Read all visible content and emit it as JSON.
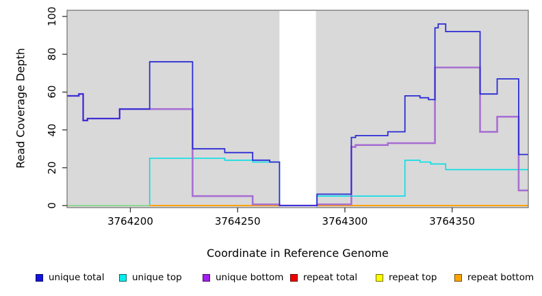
{
  "figure": {
    "y_axis": {
      "title": "Read Coverage Depth",
      "ticks": [
        0,
        20,
        40,
        60,
        80,
        100
      ]
    },
    "x_axis": {
      "title": "Coordinate in Reference Genome",
      "ticks": [
        3764200,
        3764250,
        3764300,
        3764350
      ]
    }
  },
  "legend": {
    "items": [
      {
        "label": "unique total",
        "color": "#1414dd"
      },
      {
        "label": "unique top",
        "color": "#00eeee"
      },
      {
        "label": "unique bottom",
        "color": "#a020f0"
      },
      {
        "label": "repeat total",
        "color": "#ee0000"
      },
      {
        "label": "repeat top",
        "color": "#ffff00"
      },
      {
        "label": "repeat bottom",
        "color": "#ffa500"
      }
    ],
    "item_x": [
      52,
      174,
      296,
      424,
      549,
      664
    ]
  },
  "chart_data": {
    "type": "line",
    "subtype": "step",
    "title": "",
    "xlabel": "Coordinate in Reference Genome",
    "ylabel": "Read Coverage Depth",
    "x_range": [
      3764170.5,
      3764385.5
    ],
    "ylim": [
      0,
      100
    ],
    "x_ticks": [
      3764200,
      3764250,
      3764300,
      3764350
    ],
    "y_ticks": [
      0,
      20,
      40,
      60,
      80,
      100
    ],
    "grid": false,
    "legend_position": "bottom",
    "plot_background": "#d9d9d9",
    "gap_region": {
      "x_start": 3764269.5,
      "x_end": 3764286.5,
      "fill": "#ffffff"
    },
    "baseline_segments": [
      {
        "from": 3764170.5,
        "to": 3764209,
        "value": 0,
        "color": "#8fd898",
        "note": "overlap of repeat-top / unique-top at zero renders pale green"
      },
      {
        "from": 3764209,
        "to": 3764385.5,
        "value": 0,
        "color": "#ffa200"
      }
    ],
    "series": [
      {
        "name": "repeat total",
        "color": "#ee0000",
        "width": 1.6,
        "points": [
          [
            3764170.5,
            0
          ]
        ]
      },
      {
        "name": "repeat top",
        "color": "#ffff00",
        "width": 1.6,
        "points": [
          [
            3764170.5,
            0
          ]
        ]
      },
      {
        "name": "repeat bottom",
        "color": "#ffa200",
        "width": 1.6,
        "points": [
          [
            3764170.5,
            0
          ]
        ]
      },
      {
        "name": "unique top",
        "color": "#00dfe6",
        "width": 1.6,
        "points": [
          [
            3764170.5,
            0
          ],
          [
            3764209,
            25
          ],
          [
            3764244,
            24
          ],
          [
            3764257,
            23
          ],
          [
            3764269.5,
            0
          ],
          [
            3764287,
            5
          ],
          [
            3764328,
            24
          ],
          [
            3764335,
            23
          ],
          [
            3764340,
            22
          ],
          [
            3764347,
            19
          ]
        ]
      },
      {
        "name": "unique bottom",
        "color": "#a76fd2",
        "width": 2.6,
        "points": [
          [
            3764170.5,
            58
          ],
          [
            3764176,
            59
          ],
          [
            3764178,
            45
          ],
          [
            3764180,
            46
          ],
          [
            3764195,
            51
          ],
          [
            3764229,
            5
          ],
          [
            3764257,
            0.6
          ],
          [
            3764269.5,
            0
          ],
          [
            3764287,
            0.6
          ],
          [
            3764303,
            31
          ],
          [
            3764305,
            32
          ],
          [
            3764320,
            33
          ],
          [
            3764342,
            73
          ],
          [
            3764363,
            39
          ],
          [
            3764371,
            47
          ],
          [
            3764381,
            8
          ]
        ]
      },
      {
        "name": "unique total",
        "color": "#2b2bd5",
        "width": 1.8,
        "points": [
          [
            3764170.5,
            58
          ],
          [
            3764176,
            59
          ],
          [
            3764178,
            45
          ],
          [
            3764180,
            46
          ],
          [
            3764195,
            51
          ],
          [
            3764209,
            76
          ],
          [
            3764229,
            30
          ],
          [
            3764244,
            28
          ],
          [
            3764257,
            24
          ],
          [
            3764265,
            23
          ],
          [
            3764269.5,
            0
          ],
          [
            3764287,
            6
          ],
          [
            3764303,
            36
          ],
          [
            3764305,
            37
          ],
          [
            3764320,
            39
          ],
          [
            3764328,
            58
          ],
          [
            3764335,
            57
          ],
          [
            3764339,
            56
          ],
          [
            3764342,
            94
          ],
          [
            3764343.5,
            96
          ],
          [
            3764347,
            92
          ],
          [
            3764363,
            59
          ],
          [
            3764371,
            67
          ],
          [
            3764381,
            27
          ]
        ]
      }
    ]
  }
}
